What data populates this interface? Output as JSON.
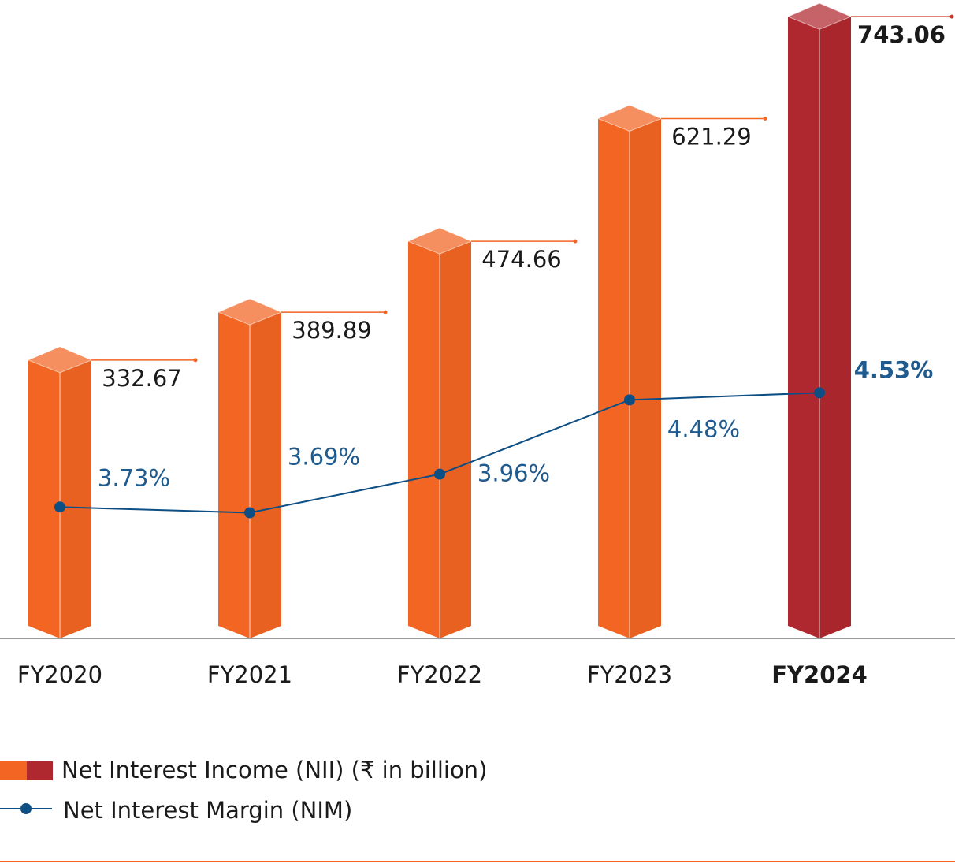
{
  "chart_data": {
    "type": "bar",
    "categories": [
      "FY2020",
      "FY2021",
      "FY2022",
      "FY2023",
      "FY2024"
    ],
    "emphasis": [
      false,
      false,
      false,
      false,
      true
    ],
    "series": [
      {
        "name": "Net Interest Income (NII) (₹ in billion)",
        "type": "bar",
        "colors": [
          "#f26522",
          "#f26522",
          "#f26522",
          "#f26522",
          "#b0282f"
        ],
        "values": [
          332.67,
          389.89,
          474.66,
          621.29,
          743.06
        ]
      },
      {
        "name": "Net Interest Margin (NIM)",
        "type": "line",
        "axis": "y2",
        "color": "#0d4f84",
        "values": [
          3.73,
          3.69,
          3.96,
          4.48,
          4.53
        ],
        "value_labels": [
          "3.73%",
          "3.69%",
          "3.96%",
          "4.48%",
          "4.53%"
        ]
      }
    ],
    "ylim": [
      0,
      763
    ],
    "y2lim": [
      2.81,
      7.28
    ]
  }
}
